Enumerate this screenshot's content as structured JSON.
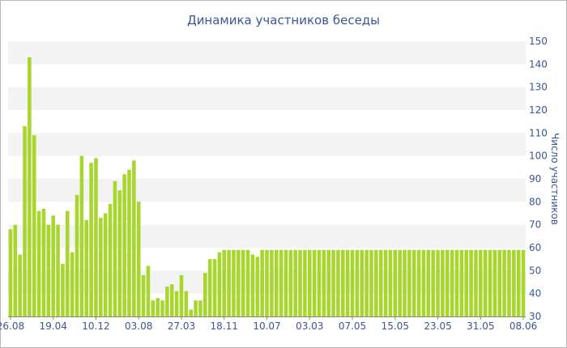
{
  "chart_data": {
    "type": "bar",
    "title": "Динамика участников беседы",
    "xlabel": "",
    "ylabel": "Число участников",
    "ylim": [
      30,
      150
    ],
    "yticks": [
      30,
      40,
      50,
      60,
      70,
      80,
      90,
      100,
      110,
      120,
      130,
      140,
      150
    ],
    "x_tick_labels": [
      {
        "index": 0,
        "label": "26.08"
      },
      {
        "index": 9,
        "label": "19.04"
      },
      {
        "index": 18,
        "label": "10.12"
      },
      {
        "index": 27,
        "label": "03.08"
      },
      {
        "index": 36,
        "label": "27.03"
      },
      {
        "index": 45,
        "label": "18.11"
      },
      {
        "index": 54,
        "label": "10.07"
      },
      {
        "index": 63,
        "label": "03.03"
      },
      {
        "index": 72,
        "label": "07.05"
      },
      {
        "index": 81,
        "label": "15.05"
      },
      {
        "index": 90,
        "label": "23.05"
      },
      {
        "index": 99,
        "label": "31.05"
      },
      {
        "index": 108,
        "label": "08.06"
      }
    ],
    "values": [
      68,
      70,
      57,
      113,
      143,
      109,
      76,
      77,
      70,
      74,
      70,
      53,
      76,
      58,
      83,
      100,
      72,
      97,
      99,
      73,
      75,
      79,
      89,
      85,
      92,
      94,
      98,
      80,
      48,
      52,
      37,
      38,
      37,
      43,
      44,
      41,
      48,
      41,
      33,
      37,
      37,
      49,
      55,
      55,
      58,
      59,
      59,
      59,
      59,
      59,
      59,
      57,
      56,
      59,
      59,
      59,
      59,
      59,
      59,
      59,
      59,
      59,
      59,
      59,
      59,
      59,
      59,
      59,
      59,
      59,
      59,
      59,
      59,
      59,
      59,
      59,
      59,
      59,
      59,
      59,
      59,
      59,
      59,
      59,
      59,
      59,
      59,
      59,
      59,
      59,
      59,
      59,
      59,
      59,
      59,
      59,
      59,
      59,
      59,
      59,
      59,
      59,
      59,
      59,
      59,
      59,
      59,
      59,
      59
    ],
    "bar_color": "#a8d62e",
    "band_color": "#f3f3f3",
    "text_color": "#3b5594",
    "grid": true
  }
}
